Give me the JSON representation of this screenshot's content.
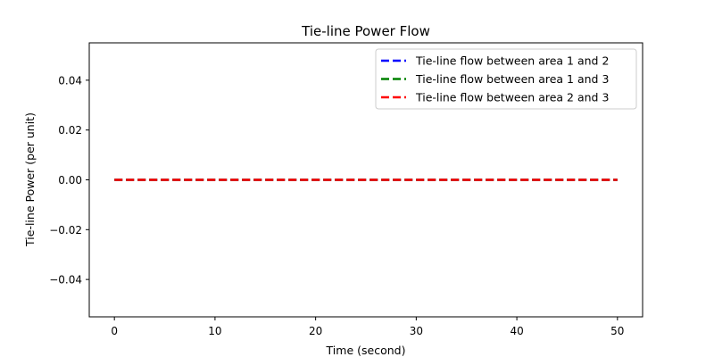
{
  "chart_data": {
    "type": "line",
    "title": "Tie-line Power Flow",
    "xlabel": "Time (second)",
    "ylabel": "Tie-line Power (per unit)",
    "xlim": [
      -2.5,
      52.5
    ],
    "ylim": [
      -0.055,
      0.055
    ],
    "xticks": [
      0,
      10,
      20,
      30,
      40,
      50
    ],
    "xtick_labels": [
      "0",
      "10",
      "20",
      "30",
      "40",
      "50"
    ],
    "yticks": [
      -0.04,
      -0.02,
      0.0,
      0.02,
      0.04
    ],
    "ytick_labels": [
      "−0.04",
      "−0.02",
      "0.00",
      "0.02",
      "0.04"
    ],
    "grid": false,
    "legend_position": "top-right",
    "x": [
      0,
      10,
      20,
      30,
      40,
      50
    ],
    "series": [
      {
        "name": "Tie-line flow between area 1 and 2",
        "color": "#0000ff",
        "style": "dashed",
        "values": [
          0,
          0,
          0,
          0,
          0,
          0
        ]
      },
      {
        "name": "Tie-line flow between area 1 and 3",
        "color": "#008000",
        "style": "dashed",
        "values": [
          0,
          0,
          0,
          0,
          0,
          0
        ]
      },
      {
        "name": "Tie-line flow between area 2 and 3",
        "color": "#ff0000",
        "style": "dashed",
        "values": [
          0,
          0,
          0,
          0,
          0,
          0
        ]
      }
    ]
  }
}
